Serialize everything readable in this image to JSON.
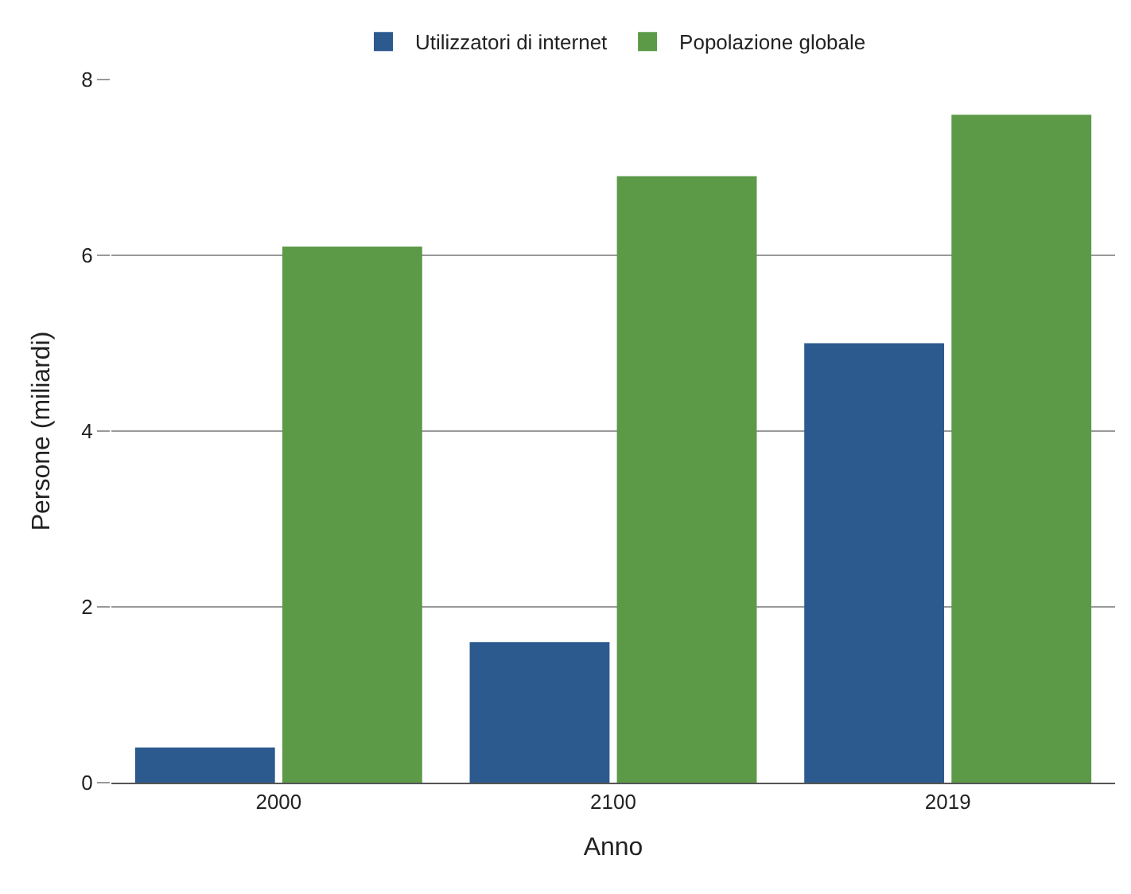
{
  "chart_data": {
    "type": "bar",
    "xlabel": "Anno",
    "ylabel": "Persone (miliardi)",
    "categories": [
      "2000",
      "2100",
      "2019"
    ],
    "series": [
      {
        "name": "Utilizzatori di internet",
        "color": "#2d5a8e",
        "values": [
          0.4,
          1.6,
          5.0
        ]
      },
      {
        "name": "Popolazione globale",
        "color": "#5c9a48",
        "values": [
          6.1,
          6.9,
          7.6
        ]
      }
    ],
    "ylim": [
      0,
      8
    ],
    "yticks": [
      0,
      2,
      4,
      6,
      8
    ],
    "grid": "y",
    "legend": "top"
  }
}
